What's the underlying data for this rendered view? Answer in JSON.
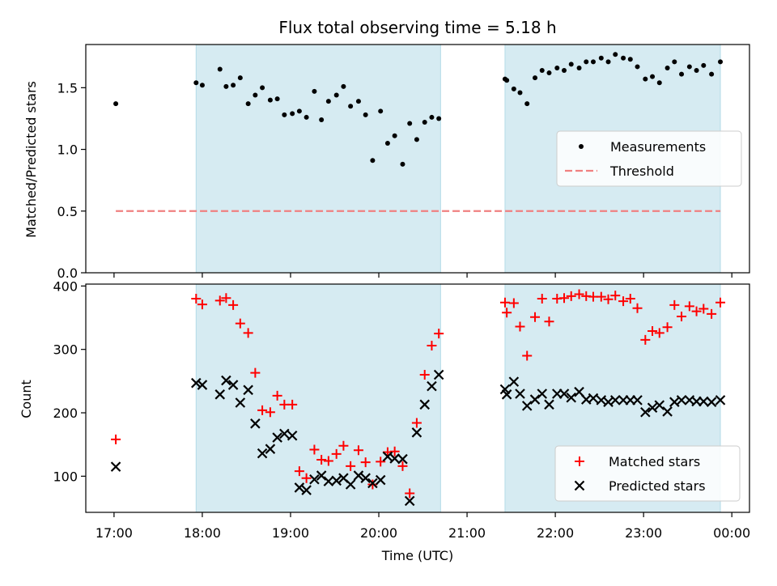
{
  "chart_data": {
    "title": "Flux total observing time = 5.18 h",
    "xlabel": "Time (UTC)",
    "x_ticks": [
      "17:00",
      "18:00",
      "19:00",
      "20:00",
      "21:00",
      "22:00",
      "23:00",
      "00:00"
    ],
    "x_range_hours": [
      16.68,
      24.2
    ],
    "shaded_intervals_hours": [
      [
        17.93,
        20.7
      ],
      [
        21.43,
        23.87
      ]
    ],
    "colors": {
      "shade": "#add8e6",
      "measurement": "#000000",
      "threshold": "#f08080",
      "matched": "#ff0000",
      "predicted": "#000000"
    },
    "panels": [
      {
        "type": "scatter",
        "ylabel": "Matched/Predicted stars",
        "ylim": [
          0,
          1.85
        ],
        "y_ticks": [
          "0.0",
          "0.5",
          "1.0",
          "1.5"
        ],
        "y_tick_values": [
          0,
          0.5,
          1.0,
          1.5
        ],
        "legend": {
          "placement": "center-right",
          "entries": [
            "Measurements",
            "Threshold"
          ]
        },
        "threshold": {
          "y": 0.5,
          "x_range": [
            17.02,
            23.87
          ]
        },
        "x_hours": [
          17.02,
          17.93,
          18.0,
          18.2,
          18.27,
          18.35,
          18.43,
          18.52,
          18.6,
          18.68,
          18.77,
          18.85,
          18.93,
          19.02,
          19.1,
          19.18,
          19.27,
          19.35,
          19.43,
          19.52,
          19.6,
          19.68,
          19.77,
          19.85,
          19.93,
          20.02,
          20.1,
          20.18,
          20.27,
          20.35,
          20.43,
          20.52,
          20.6,
          20.68,
          21.43,
          21.45,
          21.53,
          21.6,
          21.68,
          21.77,
          21.85,
          21.93,
          22.02,
          22.1,
          22.18,
          22.27,
          22.35,
          22.43,
          22.52,
          22.6,
          22.68,
          22.77,
          22.85,
          22.93,
          23.02,
          23.1,
          23.18,
          23.27,
          23.35,
          23.43,
          23.52,
          23.6,
          23.68,
          23.77,
          23.87
        ],
        "y": [
          1.37,
          1.54,
          1.52,
          1.65,
          1.51,
          1.52,
          1.58,
          1.37,
          1.44,
          1.5,
          1.4,
          1.41,
          1.28,
          1.29,
          1.31,
          1.26,
          1.47,
          1.24,
          1.39,
          1.44,
          1.51,
          1.35,
          1.39,
          1.28,
          0.91,
          1.31,
          1.05,
          1.11,
          0.88,
          1.21,
          1.08,
          1.22,
          1.26,
          1.25,
          1.57,
          1.56,
          1.49,
          1.46,
          1.37,
          1.58,
          1.64,
          1.62,
          1.66,
          1.64,
          1.69,
          1.66,
          1.71,
          1.71,
          1.74,
          1.71,
          1.77,
          1.74,
          1.73,
          1.67,
          1.57,
          1.59,
          1.54,
          1.66,
          1.71,
          1.61,
          1.67,
          1.64,
          1.68,
          1.61,
          1.71
        ]
      },
      {
        "type": "scatter",
        "ylabel": "Count",
        "ylim": [
          43,
          403
        ],
        "y_ticks": [
          "100",
          "200",
          "300",
          "400"
        ],
        "y_tick_values": [
          100,
          200,
          300,
          400
        ],
        "legend": {
          "placement": "lower-right",
          "entries": [
            "Matched stars",
            "Predicted stars"
          ]
        },
        "series": [
          {
            "name": "Matched stars",
            "marker": "plus",
            "x_hours": [
              17.02,
              17.93,
              18.0,
              18.2,
              18.27,
              18.35,
              18.43,
              18.52,
              18.6,
              18.68,
              18.77,
              18.85,
              18.93,
              19.02,
              19.1,
              19.18,
              19.27,
              19.35,
              19.43,
              19.52,
              19.6,
              19.68,
              19.77,
              19.85,
              19.93,
              20.02,
              20.1,
              20.18,
              20.27,
              20.35,
              20.43,
              20.52,
              20.6,
              20.68,
              21.43,
              21.45,
              21.53,
              21.6,
              21.68,
              21.77,
              21.85,
              21.93,
              22.02,
              22.1,
              22.18,
              22.27,
              22.35,
              22.43,
              22.52,
              22.6,
              22.68,
              22.77,
              22.85,
              22.93,
              23.02,
              23.1,
              23.18,
              23.27,
              23.35,
              23.43,
              23.52,
              23.6,
              23.68,
              23.77,
              23.87
            ],
            "y": [
              158,
              380,
              371,
              377,
              381,
              370,
              341,
              326,
              263,
              204,
              201,
              227,
              213,
              213,
              108,
              97,
              142,
              126,
              124,
              135,
              148,
              116,
              141,
              122,
              87,
              123,
              138,
              139,
              116,
              73,
              184,
              260,
              306,
              325,
              374,
              358,
              373,
              336,
              290,
              351,
              380,
              344,
              380,
              381,
              384,
              387,
              384,
              383,
              383,
              379,
              385,
              376,
              380,
              365,
              315,
              329,
              326,
              335,
              370,
              352,
              368,
              360,
              364,
              356,
              374
            ]
          },
          {
            "name": "Predicted stars",
            "marker": "x",
            "x_hours": [
              17.02,
              17.93,
              18.0,
              18.2,
              18.27,
              18.35,
              18.43,
              18.52,
              18.6,
              18.68,
              18.77,
              18.85,
              18.93,
              19.02,
              19.1,
              19.18,
              19.27,
              19.35,
              19.43,
              19.52,
              19.6,
              19.68,
              19.77,
              19.85,
              19.93,
              20.02,
              20.1,
              20.18,
              20.27,
              20.35,
              20.43,
              20.52,
              20.6,
              20.68,
              21.43,
              21.45,
              21.53,
              21.6,
              21.68,
              21.77,
              21.85,
              21.93,
              22.02,
              22.1,
              22.18,
              22.27,
              22.35,
              22.43,
              22.52,
              22.6,
              22.68,
              22.77,
              22.85,
              22.93,
              23.02,
              23.1,
              23.18,
              23.27,
              23.35,
              23.43,
              23.52,
              23.6,
              23.68,
              23.77,
              23.87
            ],
            "y": [
              115,
              247,
              244,
              229,
              251,
              244,
              216,
              236,
              183,
              136,
              143,
              161,
              167,
              164,
              82,
              78,
              95,
              101,
              92,
              93,
              97,
              87,
              101,
              97,
              89,
              94,
              131,
              128,
              127,
              61,
              169,
              213,
              242,
              260,
              237,
              229,
              249,
              230,
              211,
              221,
              230,
              213,
              230,
              230,
              224,
              233,
              221,
              223,
              220,
              217,
              220,
              220,
              220,
              220,
              201,
              208,
              212,
              202,
              217,
              220,
              220,
              218,
              218,
              217,
              220
            ]
          }
        ]
      }
    ]
  }
}
